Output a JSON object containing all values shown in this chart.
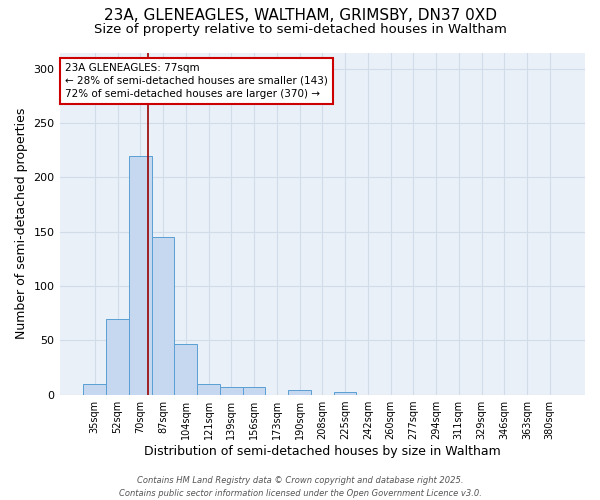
{
  "title_line1": "23A, GLENEAGLES, WALTHAM, GRIMSBY, DN37 0XD",
  "title_line2": "Size of property relative to semi-detached houses in Waltham",
  "categories": [
    "35sqm",
    "52sqm",
    "70sqm",
    "87sqm",
    "104sqm",
    "121sqm",
    "139sqm",
    "156sqm",
    "173sqm",
    "190sqm",
    "208sqm",
    "225sqm",
    "242sqm",
    "260sqm",
    "277sqm",
    "294sqm",
    "311sqm",
    "329sqm",
    "346sqm",
    "363sqm",
    "380sqm"
  ],
  "values": [
    10,
    70,
    220,
    145,
    47,
    10,
    7,
    7,
    0,
    4,
    0,
    2,
    0,
    0,
    0,
    0,
    0,
    0,
    0,
    0,
    0
  ],
  "bar_color": "#c5d8f0",
  "bar_edge_color": "#5a9fd4",
  "grid_color": "#d0dde8",
  "background_color": "#eaf0f8",
  "ylabel": "Number of semi-detached properties",
  "xlabel": "Distribution of semi-detached houses by size in Waltham",
  "ylim": [
    0,
    315
  ],
  "yticks": [
    0,
    50,
    100,
    150,
    200,
    250,
    300
  ],
  "annotation_text": "23A GLENEAGLES: 77sqm\n← 28% of semi-detached houses are smaller (143)\n72% of semi-detached houses are larger (370) →",
  "vline_color": "#990000",
  "annotation_box_edge": "#cc0000",
  "footer_text": "Contains HM Land Registry data © Crown copyright and database right 2025.\nContains public sector information licensed under the Open Government Licence v3.0.",
  "title_fontsize": 11,
  "subtitle_fontsize": 9.5,
  "tick_fontsize": 7,
  "ylabel_fontsize": 9,
  "xlabel_fontsize": 9,
  "footer_fontsize": 6,
  "annotation_fontsize": 7.5,
  "vline_x": 2.35
}
